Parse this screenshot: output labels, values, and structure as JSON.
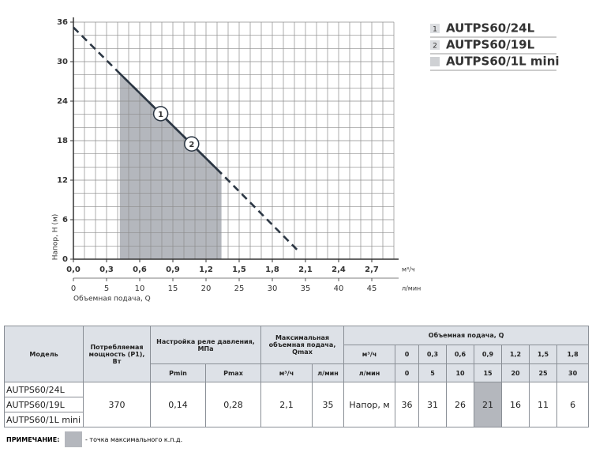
{
  "chart_data": {
    "type": "line",
    "y_label": "Напор, Н (м)",
    "x_label": "Объемная подача, Q",
    "x_unit": "м³/ч",
    "x2_unit": "л/мин",
    "xlim": [
      0,
      2.9
    ],
    "ylim": [
      0,
      36
    ],
    "x2lim": [
      0,
      48.33
    ],
    "xticks": [
      {
        "value": 0,
        "label": "0,0"
      },
      {
        "value": 0.3,
        "label": "0,3"
      },
      {
        "value": 0.6,
        "label": "0,6"
      },
      {
        "value": 0.9,
        "label": "0,9"
      },
      {
        "value": 1.2,
        "label": "1,2"
      },
      {
        "value": 1.5,
        "label": "1,5"
      },
      {
        "value": 1.8,
        "label": "1,8"
      },
      {
        "value": 2.1,
        "label": "2,1"
      },
      {
        "value": 2.4,
        "label": "2,4"
      },
      {
        "value": 2.7,
        "label": "2,7"
      }
    ],
    "x2ticks": [
      0,
      5,
      10,
      15,
      20,
      25,
      30,
      35,
      40,
      45
    ],
    "yticks": [
      0,
      6,
      12,
      18,
      24,
      30,
      36
    ],
    "grid": true,
    "grid_step_x": 0.1,
    "grid_step_y": 2,
    "curve": {
      "x": [
        0,
        0.42,
        1.34,
        2.05
      ],
      "y": [
        35.2,
        28.2,
        13,
        1
      ],
      "color": "#2c3744"
    },
    "shaded_range": [
      0.42,
      1.34
    ],
    "shade_color": "#b4b7bd",
    "points": [
      {
        "label": "1",
        "x": 0.79,
        "y": 22.1
      },
      {
        "label": "2",
        "x": 1.07,
        "y": 17.5
      }
    ],
    "legend": [
      {
        "marker": "1",
        "name": "AUTPS60/24L"
      },
      {
        "marker": "2",
        "name": "AUTPS60/19L"
      },
      {
        "name": "AUTPS60/1L mini",
        "color": "#cfd1d4"
      }
    ]
  },
  "table": {
    "headers": {
      "model": "Модель",
      "power": "Потребляемая мощность (P1), Вт",
      "relay": "Настройка реле давления, МПа",
      "pmin": "Pmin",
      "pmax": "Pmax",
      "qmax": "Максимальная объемная подача, Qmax",
      "qmax_m3": "м³/ч",
      "qmax_l": "л/мин",
      "flow": "Объемная подача, Q",
      "flow_m3": "м³/ч",
      "flow_l": "л/мин"
    },
    "flow_m3": [
      "0",
      "0,3",
      "0,6",
      "0,9",
      "1,2",
      "1,5",
      "1,8"
    ],
    "flow_l": [
      0,
      5,
      10,
      15,
      20,
      25,
      30
    ],
    "models": [
      "AUTPS60/24L",
      "AUTPS60/19L",
      "AUTPS60/1L mini"
    ],
    "power": 370,
    "pmin": "0,14",
    "pmax": "0,28",
    "qmax_m3": "2,1",
    "qmax_l": 35,
    "head_label": "Напор, м",
    "head": [
      36,
      31,
      26,
      21,
      16,
      11,
      6
    ],
    "highlight_index": 3
  },
  "note": {
    "label": "ПРИМЕЧАНИЕ:",
    "text": "- точка максимального к.п.д."
  }
}
